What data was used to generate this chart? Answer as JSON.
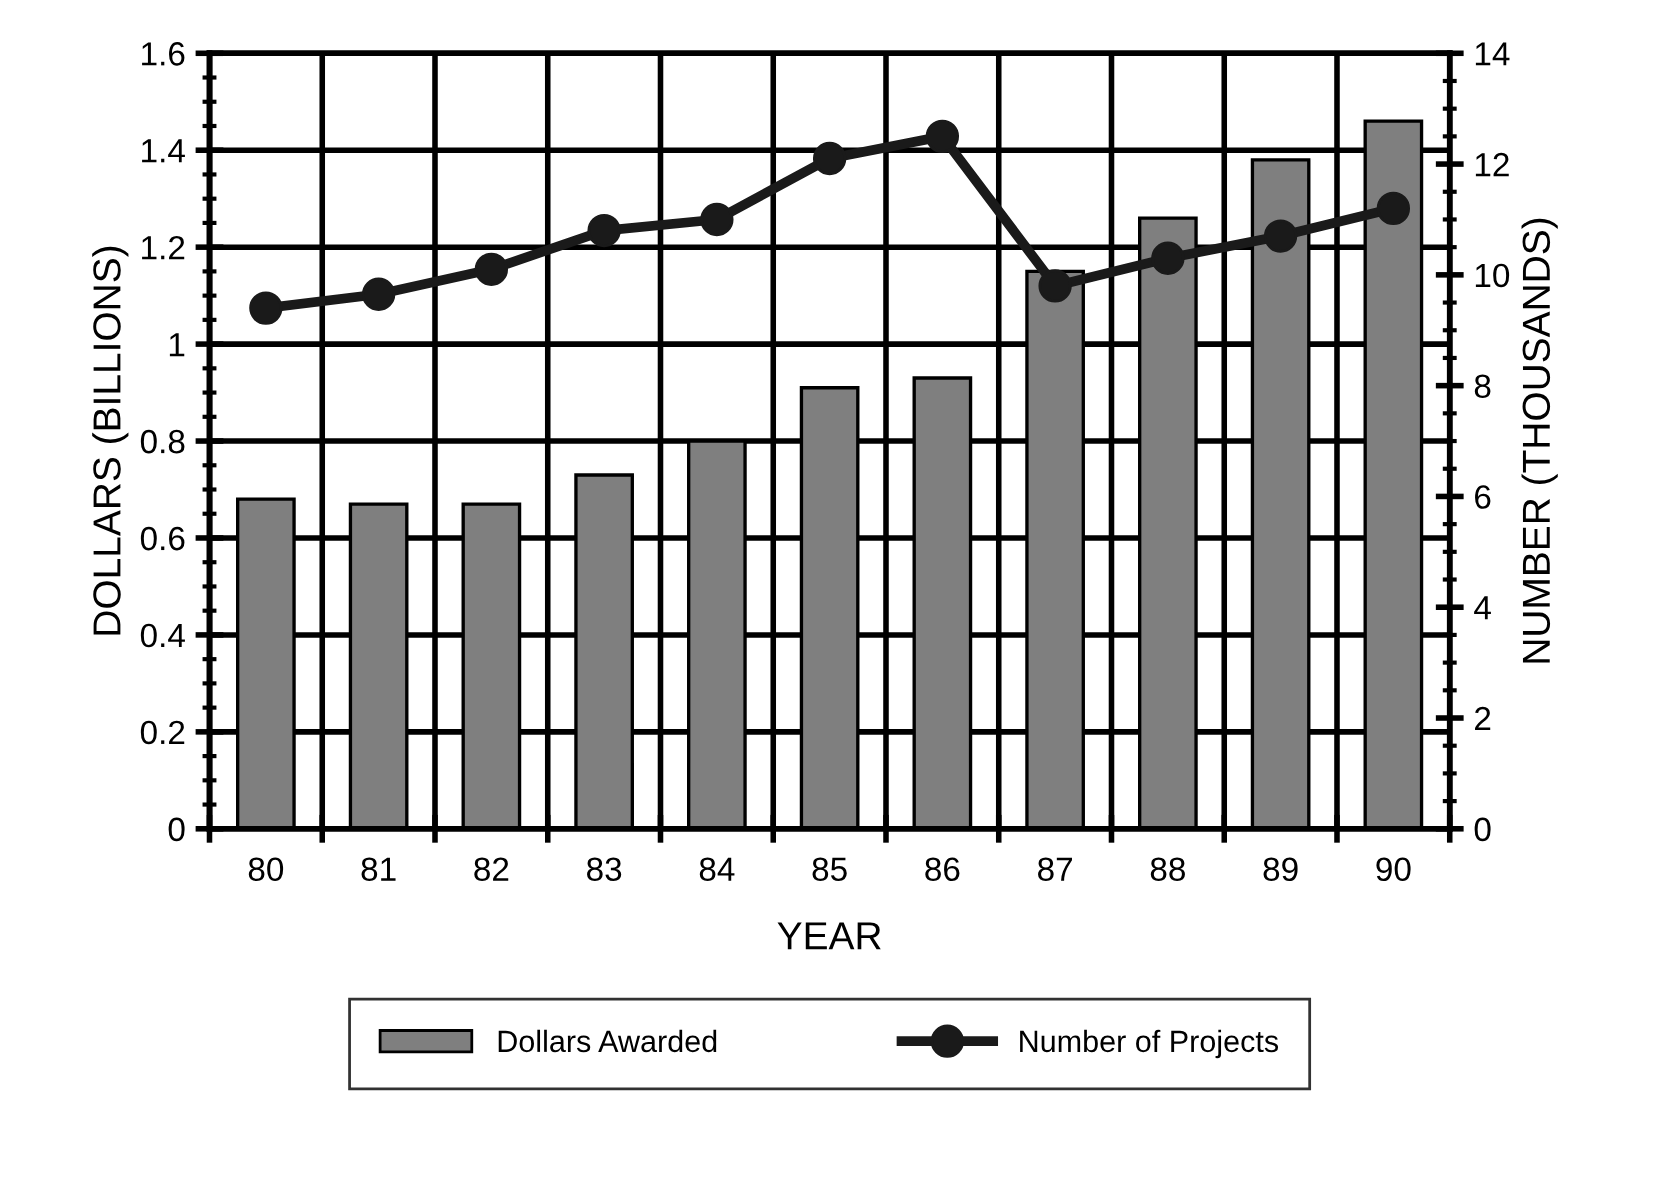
{
  "chart_data": {
    "type": "bar",
    "xlabel": "YEAR",
    "ylabel": "DOLLARS (BILLIONS)",
    "y2label": "NUMBER (THOUSANDS)",
    "categories": [
      "80",
      "81",
      "82",
      "83",
      "84",
      "85",
      "86",
      "87",
      "88",
      "89",
      "90"
    ],
    "series": [
      {
        "name": "Dollars Awarded",
        "color": "#7f7f7f",
        "values": [
          0.68,
          0.67,
          0.67,
          0.73,
          0.8,
          0.91,
          0.93,
          1.15,
          1.26,
          1.38,
          1.46
        ]
      },
      {
        "name": "Number of Projects",
        "type": "line",
        "axis": "y2",
        "color": "#1a1a1a",
        "marker": "circle",
        "line_style": "solid",
        "values": [
          9.4,
          9.65,
          10.1,
          10.8,
          11.0,
          12.1,
          12.5,
          9.8,
          10.3,
          10.7,
          11.2
        ]
      }
    ],
    "ylim": [
      0,
      1.6
    ],
    "yticks": [
      0,
      0.2,
      0.4,
      0.6,
      0.8,
      1,
      1.2,
      1.4,
      1.6
    ],
    "y2lim": [
      0,
      14
    ],
    "y2ticks": [
      0,
      2,
      4,
      6,
      8,
      10,
      12,
      14
    ],
    "grid": true,
    "legend": "bottom"
  }
}
